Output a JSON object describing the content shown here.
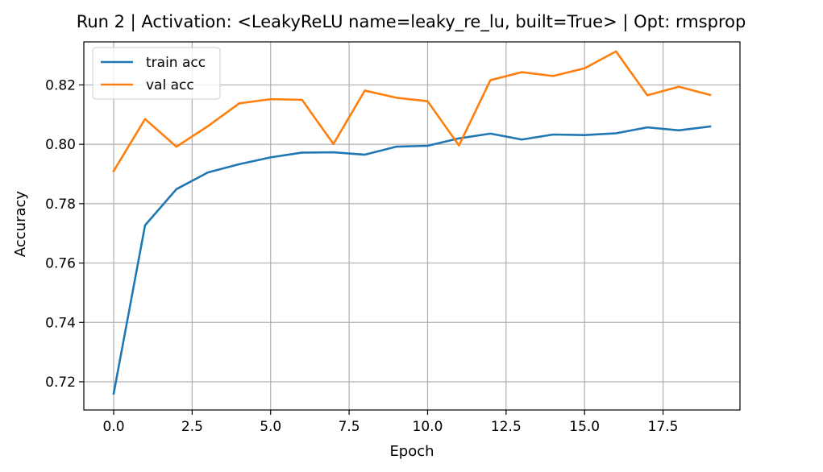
{
  "chart_data": {
    "type": "line",
    "title": "Run 2 | Activation: <LeakyReLU name=leaky_re_lu, built=True> | Opt: rmsprop",
    "xlabel": "Epoch",
    "ylabel": "Accuracy",
    "xlim": [
      -0.95,
      19.95
    ],
    "ylim": [
      0.7105,
      0.8345
    ],
    "xticks": [
      0.0,
      2.5,
      5.0,
      7.5,
      10.0,
      12.5,
      15.0,
      17.5
    ],
    "xtick_labels": [
      "0.0",
      "2.5",
      "5.0",
      "7.5",
      "10.0",
      "12.5",
      "15.0",
      "17.5"
    ],
    "yticks": [
      0.72,
      0.74,
      0.76,
      0.78,
      0.8,
      0.82
    ],
    "ytick_labels": [
      "0.72",
      "0.74",
      "0.76",
      "0.78",
      "0.80",
      "0.82"
    ],
    "grid": true,
    "legend_position": "top-left",
    "x": [
      0,
      1,
      2,
      3,
      4,
      5,
      6,
      7,
      8,
      9,
      10,
      11,
      12,
      13,
      14,
      15,
      16,
      17,
      18,
      19
    ],
    "series": [
      {
        "name": "train acc",
        "color": "#1f77b4",
        "values": [
          0.716,
          0.7727,
          0.7849,
          0.7905,
          0.7933,
          0.7956,
          0.7972,
          0.7973,
          0.7965,
          0.7992,
          0.7995,
          0.802,
          0.8036,
          0.8016,
          0.8033,
          0.8031,
          0.8037,
          0.8057,
          0.8047,
          0.806
        ]
      },
      {
        "name": "val acc",
        "color": "#ff7f0e",
        "values": [
          0.791,
          0.8085,
          0.7992,
          0.8061,
          0.8138,
          0.8152,
          0.815,
          0.8001,
          0.8181,
          0.8157,
          0.8145,
          0.7996,
          0.8216,
          0.8243,
          0.823,
          0.8256,
          0.8313,
          0.8165,
          0.8194,
          0.8166
        ]
      }
    ]
  }
}
